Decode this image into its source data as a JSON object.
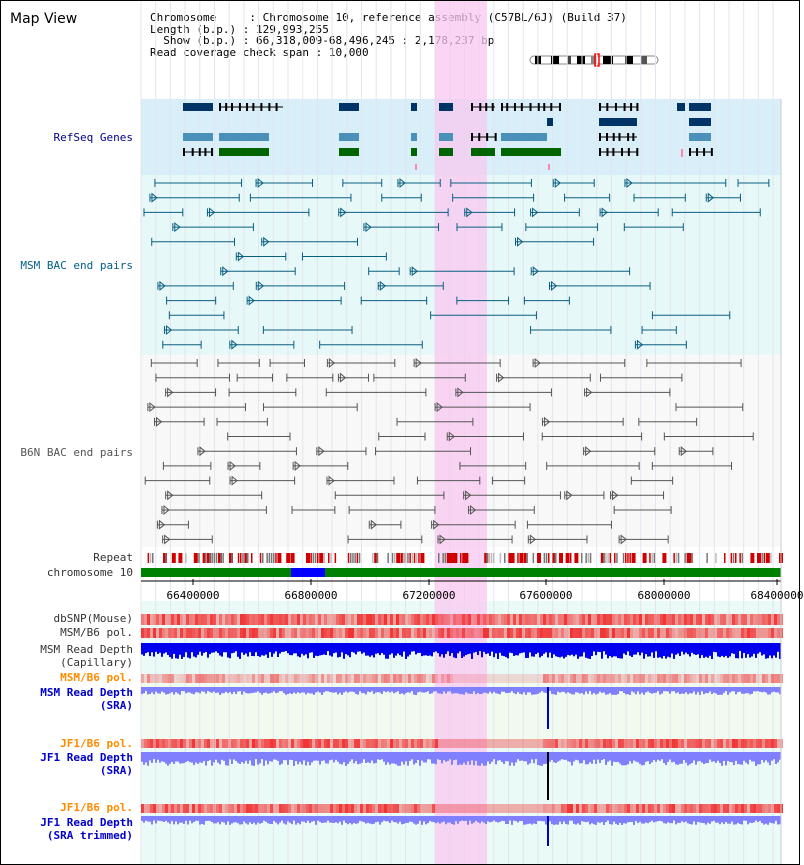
{
  "app": {
    "title": "Map View"
  },
  "info": {
    "chromosome_key": "Chromosome",
    "chromosome_val": "Chromosome 10, reference assembly (C57BL/6J) (Build 37)",
    "length_key": "Length (b.p.)",
    "length_val": "129,993,255",
    "show_key": "Show (b.p.)",
    "show_val": "66,318,009-68,496,245 : 2,178,237 bp",
    "read_key": "Read coverage check span",
    "read_val": "10,000"
  },
  "tracks": {
    "refseq": {
      "label": "RefSeq Genes",
      "color": "#00008b"
    },
    "msm_bac": {
      "label": "MSM BAC end pairs",
      "color": "#005f87"
    },
    "b6n_bac": {
      "label": "B6N BAC end pairs",
      "color": "#555555"
    },
    "repeat": {
      "label": "Repeat"
    },
    "chromosome": {
      "label": "chromosome 10"
    },
    "dbsnp": {
      "label": "dbSNP(Mouse)"
    },
    "msm_b6_pol_1": {
      "label": "MSM/B6 pol."
    },
    "msm_depth_cap": {
      "label1": "MSM Read Depth",
      "label2": "(Capillary)"
    },
    "msm_b6_pol_2": {
      "label": "MSM/B6 pol.",
      "color": "#ff8c00"
    },
    "msm_depth_sra": {
      "label1": "MSM Read Depth",
      "label2": "(SRA)",
      "color": "#0000cd"
    },
    "jf1_b6_pol_1": {
      "label": "JF1/B6 pol.",
      "color": "#ff8c00"
    },
    "jf1_depth_sra": {
      "label1": "JF1 Read Depth",
      "label2": "(SRA)",
      "color": "#0000cd"
    },
    "jf1_b6_pol_2": {
      "label": "JF1/B6 pol.",
      "color": "#ff8c00"
    },
    "jf1_depth_trim": {
      "label1": "JF1 Read Depth",
      "label2": "(SRA trimmed)",
      "color": "#0000cd"
    }
  },
  "axis": {
    "ticks": [
      "66400000",
      "66800000",
      "67200000",
      "67600000",
      "68000000",
      "68400000"
    ]
  },
  "colors": {
    "highlight": "#f8c8f0",
    "refseq_bg": "#d8eef8",
    "msm_bg": "#e6f8f8",
    "b6n_bg": "#f8f8f8",
    "chrom_band": "#008000",
    "chrom_blue": "#0000ff",
    "snp_red": "#ff4040",
    "depth_dark": "#0000ee",
    "depth_light": "#8080ff"
  }
}
